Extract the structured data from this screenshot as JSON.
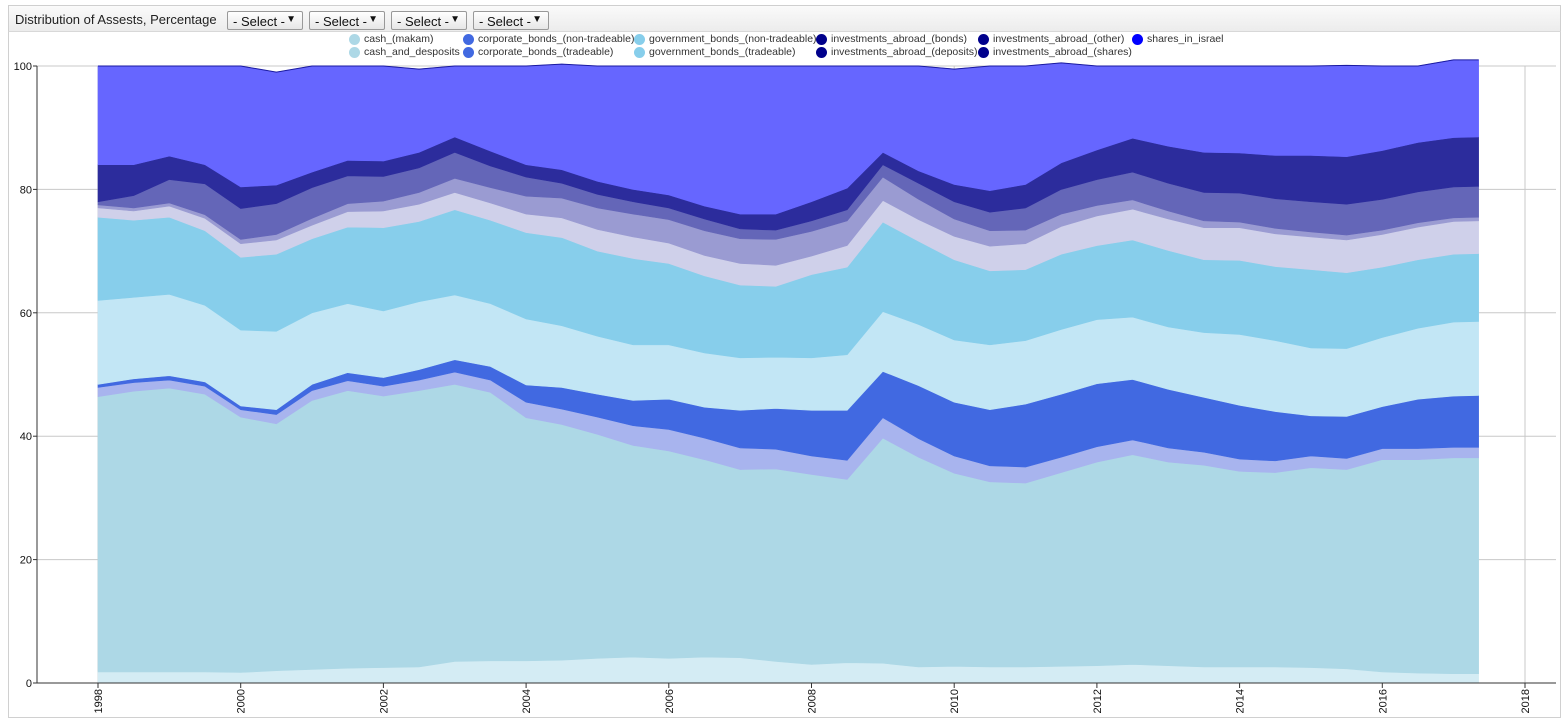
{
  "toolbar": {
    "title": "Distribution of Assests, Percentage",
    "selects": [
      "- Select -",
      "- Select -",
      "- Select -",
      "- Select -"
    ]
  },
  "chart_data": {
    "type": "area",
    "stacked": true,
    "title": "Distribution of Assests, Percentage",
    "xlabel": "",
    "ylabel": "",
    "xlim": [
      1998,
      2018.4
    ],
    "ylim": [
      0,
      100
    ],
    "x_ticks": [
      "1998",
      "2000",
      "2002",
      "2004",
      "2006",
      "2008",
      "2010",
      "2012",
      "2014",
      "2016",
      "2018"
    ],
    "y_ticks": [
      "0",
      "20",
      "40",
      "60",
      "80",
      "100"
    ],
    "grid": true,
    "legend_position": "top",
    "x": [
      1998.0,
      1998.5,
      1999.0,
      1999.5,
      2000.0,
      2000.5,
      2001.0,
      2001.5,
      2002.0,
      2002.5,
      2003.0,
      2003.5,
      2004.0,
      2004.5,
      2005.0,
      2005.5,
      2006.0,
      2006.5,
      2007.0,
      2007.5,
      2008.0,
      2008.5,
      2009.0,
      2009.5,
      2010.0,
      2010.5,
      2011.0,
      2011.5,
      2012.0,
      2012.5,
      2013.0,
      2013.5,
      2014.0,
      2014.5,
      2015.0,
      2015.5,
      2016.0,
      2016.5,
      2017.0,
      2017.35
    ],
    "series": [
      {
        "name": "cash_(makam)",
        "color": "#d4ecf4",
        "values": [
          1.8,
          1.8,
          1.8,
          1.8,
          1.7,
          2.0,
          2.2,
          2.4,
          2.5,
          2.6,
          3.5,
          3.6,
          3.6,
          3.7,
          4.0,
          4.2,
          4.0,
          4.2,
          4.1,
          3.5,
          3.0,
          3.3,
          3.2,
          2.6,
          2.7,
          2.6,
          2.6,
          2.7,
          2.8,
          3.0,
          2.8,
          2.6,
          2.6,
          2.6,
          2.5,
          2.3,
          1.8,
          1.6,
          1.5,
          1.5
        ]
      },
      {
        "name": "cash_and_desposits",
        "color": "#add8e6",
        "values": [
          44.6,
          45.5,
          46.0,
          45.0,
          41.4,
          40.0,
          43.6,
          45.0,
          44.0,
          44.8,
          44.9,
          43.5,
          39.4,
          38.2,
          36.3,
          34.3,
          33.6,
          32.0,
          30.5,
          31.2,
          30.8,
          29.7,
          36.5,
          34.0,
          31.3,
          30.0,
          29.8,
          31.4,
          33.0,
          34.0,
          33.0,
          32.7,
          31.7,
          31.5,
          32.4,
          32.3,
          34.4,
          34.6,
          35.0,
          35.0
        ]
      },
      {
        "name": "corporate_bonds_(non-tradeable)",
        "color": "#a8b4ee",
        "values": [
          1.5,
          1.4,
          1.3,
          1.3,
          1.2,
          1.5,
          1.6,
          1.6,
          1.6,
          1.7,
          2.0,
          2.0,
          2.5,
          2.5,
          2.8,
          3.2,
          3.5,
          3.5,
          3.5,
          3.2,
          3.0,
          3.1,
          3.3,
          3.0,
          2.8,
          2.6,
          2.6,
          2.5,
          2.5,
          2.4,
          2.3,
          2.1,
          2.0,
          1.9,
          1.9,
          1.8,
          1.8,
          1.8,
          1.7,
          1.7
        ]
      },
      {
        "name": "corporate_bonds_(tradeable)",
        "color": "#4169e1",
        "values": [
          0.5,
          0.6,
          0.7,
          0.7,
          0.6,
          0.8,
          1.0,
          1.3,
          1.4,
          1.7,
          2.0,
          2.2,
          2.8,
          3.5,
          3.7,
          4.1,
          4.9,
          5.0,
          6.1,
          6.6,
          7.4,
          8.1,
          7.5,
          8.6,
          8.7,
          9.1,
          10.2,
          10.2,
          10.2,
          9.8,
          9.5,
          8.9,
          8.7,
          8.0,
          6.5,
          6.8,
          6.8,
          8.0,
          8.3,
          8.4
        ]
      },
      {
        "name": "government_bonds_(non-tradeable)",
        "color": "#c2e6f5",
        "values": [
          13.6,
          13.2,
          13.2,
          12.4,
          12.3,
          12.7,
          11.6,
          11.2,
          10.8,
          11.0,
          10.5,
          10.2,
          10.7,
          10.0,
          9.4,
          9.0,
          8.8,
          8.8,
          8.5,
          8.3,
          8.5,
          9.0,
          9.7,
          9.9,
          10.1,
          10.5,
          10.3,
          10.5,
          10.4,
          10.1,
          10.1,
          10.5,
          11.5,
          11.5,
          11.0,
          11.0,
          11.2,
          11.5,
          12.0,
          12.0
        ]
      },
      {
        "name": "government_bonds_(tradeable)",
        "color": "#87ceeb",
        "values": [
          13.5,
          12.5,
          12.5,
          12.1,
          11.8,
          12.5,
          12.0,
          12.4,
          13.5,
          13.0,
          13.8,
          13.5,
          14.0,
          14.3,
          13.8,
          14.0,
          13.2,
          12.5,
          11.8,
          11.5,
          13.5,
          14.2,
          14.5,
          13.5,
          13.0,
          12.0,
          11.5,
          12.2,
          12.0,
          12.5,
          12.4,
          11.8,
          12.0,
          12.0,
          12.7,
          12.3,
          11.4,
          11.1,
          11.0,
          11.0
        ]
      },
      {
        "name": "investments_abroad_(bonds)",
        "color": "#cfd0ea",
        "values": [
          1.5,
          1.5,
          1.8,
          2.0,
          2.2,
          2.3,
          2.2,
          2.5,
          2.7,
          2.8,
          2.8,
          2.8,
          3.0,
          3.2,
          3.5,
          3.5,
          3.3,
          3.3,
          3.5,
          3.4,
          3.0,
          3.5,
          3.5,
          3.5,
          3.8,
          4.0,
          4.2,
          4.5,
          4.8,
          5.0,
          5.1,
          5.2,
          5.3,
          5.3,
          5.3,
          5.3,
          5.3,
          5.3,
          5.3,
          5.3
        ]
      },
      {
        "name": "investments_abroad_(deposits)",
        "color": "#9a9bd2",
        "values": [
          0.5,
          0.5,
          0.5,
          0.6,
          0.7,
          0.9,
          1.1,
          1.3,
          1.6,
          1.9,
          2.3,
          2.5,
          2.9,
          3.2,
          3.5,
          3.7,
          3.8,
          4.0,
          4.0,
          4.2,
          4.0,
          4.0,
          3.8,
          3.3,
          2.8,
          2.5,
          2.2,
          2.0,
          1.7,
          1.5,
          1.3,
          1.1,
          0.9,
          0.9,
          0.8,
          0.8,
          0.7,
          0.7,
          0.6,
          0.6
        ]
      },
      {
        "name": "investments_abroad_(other)",
        "color": "#6466b8",
        "values": [
          0.5,
          2.0,
          3.8,
          5.0,
          5.0,
          5.0,
          5.0,
          4.5,
          4.0,
          4.0,
          4.2,
          3.5,
          3.1,
          2.4,
          2.2,
          2.0,
          1.9,
          1.9,
          1.6,
          1.5,
          1.7,
          1.8,
          2.0,
          2.6,
          2.8,
          3.0,
          3.6,
          4.0,
          4.2,
          4.5,
          4.5,
          4.6,
          4.7,
          4.8,
          4.9,
          5.0,
          5.0,
          5.0,
          5.0,
          5.0
        ]
      },
      {
        "name": "investments_abroad_(shares)",
        "color": "#2c2c9c",
        "values": [
          6.0,
          5.0,
          3.8,
          3.1,
          3.5,
          3.0,
          2.5,
          2.5,
          2.5,
          2.5,
          2.5,
          2.4,
          2.0,
          2.2,
          2.1,
          2.0,
          2.1,
          2.1,
          2.4,
          2.6,
          3.1,
          3.5,
          2.0,
          2.0,
          2.8,
          3.5,
          3.8,
          4.3,
          4.8,
          5.5,
          6.0,
          6.5,
          6.5,
          7.0,
          7.5,
          7.7,
          7.9,
          8.0,
          8.0,
          8.0
        ]
      },
      {
        "name": "shares_in_israel",
        "color": "#6666ff",
        "values": [
          16.0,
          16.0,
          14.6,
          16.0,
          19.6,
          18.3,
          17.2,
          15.3,
          15.4,
          13.5,
          11.5,
          13.8,
          16.0,
          17.1,
          18.7,
          20.0,
          20.9,
          22.7,
          24.0,
          24.0,
          22.0,
          19.8,
          14.0,
          17.0,
          18.7,
          20.2,
          19.2,
          16.2,
          13.6,
          11.7,
          13.0,
          14.0,
          14.1,
          14.5,
          14.5,
          14.8,
          13.7,
          12.4,
          12.6,
          12.5
        ]
      }
    ],
    "legend_rows": [
      [
        {
          "label": "cash_(makam)",
          "color": "#add8e6"
        },
        {
          "label": "corporate_bonds_(non-tradeable)",
          "color": "#4169e1"
        },
        {
          "label": "government_bonds_(non-tradeable)",
          "color": "#87ceeb"
        },
        {
          "label": "investments_abroad_(bonds)",
          "color": "#00008b"
        },
        {
          "label": "investments_abroad_(other)",
          "color": "#00008b"
        },
        {
          "label": "shares_in_israel",
          "color": "#0000ff"
        }
      ],
      [
        {
          "label": "cash_and_desposits",
          "color": "#add8e6"
        },
        {
          "label": "corporate_bonds_(tradeable)",
          "color": "#4169e1"
        },
        {
          "label": "government_bonds_(tradeable)",
          "color": "#87ceeb"
        },
        {
          "label": "investments_abroad_(deposits)",
          "color": "#00008b"
        },
        {
          "label": "investments_abroad_(shares)",
          "color": "#00008b"
        }
      ]
    ]
  }
}
